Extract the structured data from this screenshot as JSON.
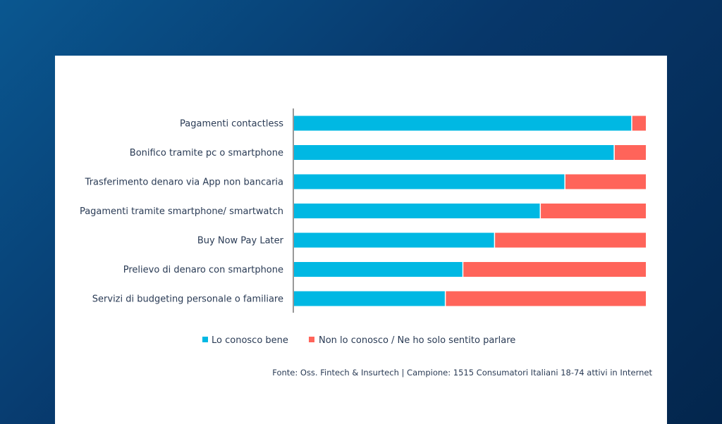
{
  "colors": {
    "known": "#00b8e3",
    "unknown": "#ff645a",
    "text": "#2a3b55",
    "axis": "#555555"
  },
  "chart_data": {
    "type": "bar",
    "orientation": "horizontal",
    "stacked": true,
    "percent_stacked": true,
    "categories": [
      "Pagamenti contactless",
      "Bonifico tramite pc o smartphone",
      "Trasferimento denaro via App non bancaria",
      "Pagamenti tramite smartphone/ smartwatch",
      "Buy Now Pay Later",
      "Prelievo di denaro con smartphone",
      "Servizi di budgeting personale o familiare"
    ],
    "series": [
      {
        "name": "Lo conosco bene",
        "values": [
          96,
          91,
          77,
          70,
          57,
          48,
          43
        ]
      },
      {
        "name": "Non lo conosco / Ne ho solo sentito parlare",
        "values": [
          4,
          9,
          23,
          30,
          43,
          52,
          57
        ]
      }
    ],
    "xlim": [
      0,
      100
    ],
    "grid": false,
    "legend_position": "bottom",
    "source": "Fonte: Oss. Fintech & Insurtech | Campione: 1515 Consumatori Italiani 18-74 attivi in Internet"
  }
}
